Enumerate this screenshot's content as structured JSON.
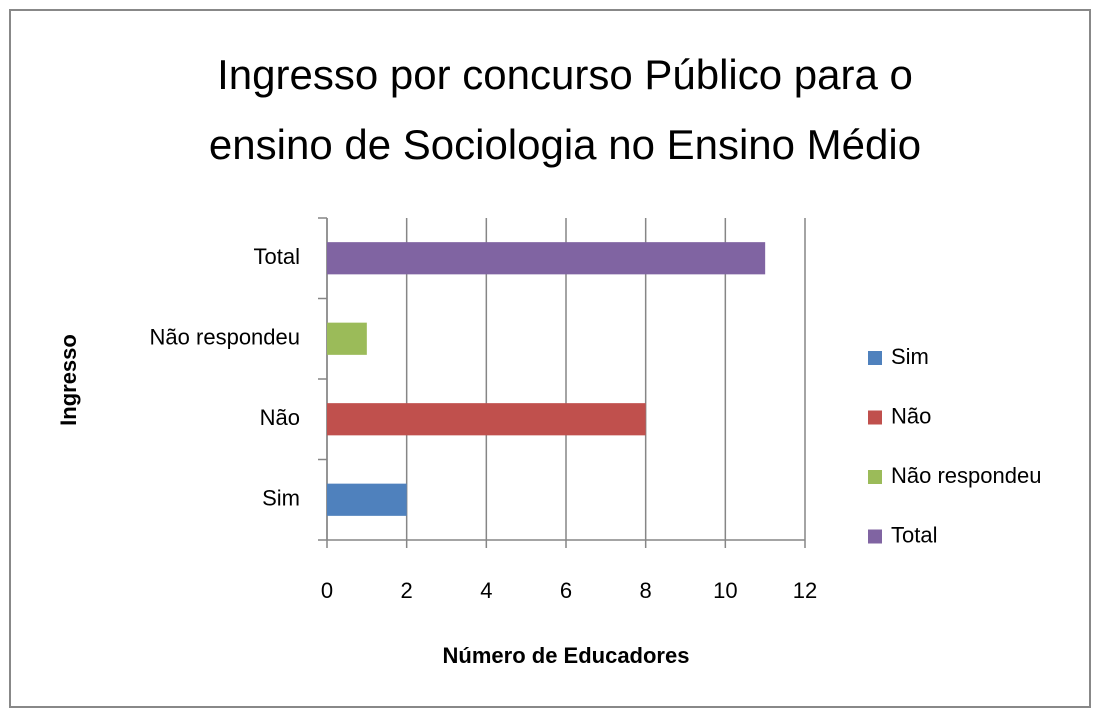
{
  "chart_data": {
    "type": "bar",
    "orientation": "horizontal",
    "title": [
      "Ingresso por concurso Público para o",
      "ensino de Sociologia no Ensino Médio"
    ],
    "xlabel": "Número de Educadores",
    "ylabel": "Ingresso",
    "categories": [
      "Sim",
      "Não",
      "Não respondeu",
      "Total"
    ],
    "series": [
      {
        "name": "Sim",
        "color": "#4f81bd",
        "values": [
          2,
          null,
          null,
          null
        ]
      },
      {
        "name": "Não",
        "color": "#c0504d",
        "values": [
          null,
          8,
          null,
          null
        ]
      },
      {
        "name": "Não respondeu",
        "color": "#9bbb59",
        "values": [
          null,
          null,
          1,
          null
        ]
      },
      {
        "name": "Total",
        "color": "#8064a2",
        "values": [
          null,
          null,
          null,
          11
        ]
      }
    ],
    "xlim": [
      0,
      12
    ],
    "xticks": [
      0,
      2,
      4,
      6,
      8,
      10,
      12
    ],
    "grid": true,
    "legend": "right"
  }
}
